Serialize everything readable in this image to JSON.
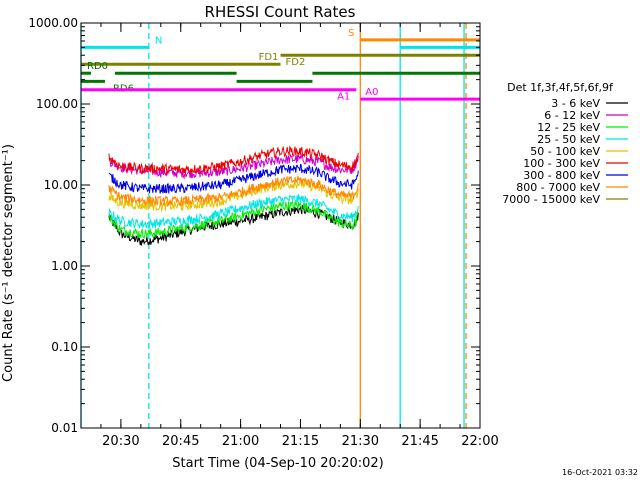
{
  "chart_data": {
    "type": "line",
    "title": "RHESSI Count Rates",
    "xlabel": "Start Time (04-Sep-10 20:20:02)",
    "ylabel": "Count Rate (s⁻¹ detector segment⁻¹)",
    "yscale": "log",
    "ylim": [
      0.01,
      1000
    ],
    "xlim_minutes": [
      0,
      100
    ],
    "x_tick_labels": [
      "20:30",
      "20:45",
      "21:00",
      "21:15",
      "21:30",
      "21:45",
      "22:00"
    ],
    "x_tick_minutes": [
      10,
      25,
      40,
      55,
      70,
      85,
      100
    ],
    "y_tick_labels": [
      "0.01",
      "0.10",
      "1.00",
      "10.00",
      "100.00",
      "1000.00"
    ],
    "y_tick_values": [
      0.01,
      0.1,
      1,
      10,
      100,
      1000
    ],
    "legend_title": "Det 1f,3f,4f,5f,6f,9f",
    "legend_position": "right",
    "timestamp": "16-Oct-2021 03:32",
    "x": [
      7,
      10,
      15,
      20,
      25,
      30,
      35,
      40,
      45,
      50,
      55,
      60,
      62,
      65,
      68,
      69,
      69.5
    ],
    "series": [
      {
        "name": "3 - 6 keV",
        "color": "#000000",
        "values": [
          4.0,
          2.5,
          2.0,
          2.2,
          2.6,
          3.0,
          3.3,
          3.6,
          4.0,
          4.6,
          5.0,
          4.4,
          4.0,
          3.5,
          3.2,
          3.5,
          4.5
        ]
      },
      {
        "name": "6 - 12 keV",
        "color": "#cc00cc",
        "values": [
          20.0,
          16.5,
          15.0,
          14.5,
          14.0,
          14.0,
          14.5,
          16.0,
          18.0,
          20.5,
          21.0,
          19.0,
          17.0,
          15.5,
          15.5,
          19.0,
          23.0
        ]
      },
      {
        "name": "12 - 25 keV",
        "color": "#00ee00",
        "values": [
          4.0,
          2.8,
          2.5,
          2.6,
          2.9,
          3.2,
          3.6,
          4.2,
          4.9,
          5.5,
          5.6,
          4.7,
          4.0,
          3.4,
          3.1,
          3.6,
          4.5
        ]
      },
      {
        "name": "25 - 50 keV",
        "color": "#00e5e5",
        "values": [
          4.5,
          3.6,
          3.3,
          3.4,
          3.6,
          3.9,
          4.4,
          5.2,
          6.0,
          6.6,
          6.7,
          5.8,
          5.0,
          4.2,
          4.0,
          4.6,
          5.5
        ]
      },
      {
        "name": "50 - 100 keV",
        "color": "#e6c200",
        "values": [
          7.0,
          6.0,
          5.6,
          5.5,
          5.5,
          5.8,
          6.3,
          7.5,
          9.0,
          10.0,
          10.5,
          9.0,
          7.8,
          6.8,
          6.5,
          7.5,
          9.0
        ]
      },
      {
        "name": "100 - 300 keV",
        "color": "#ee0000",
        "values": [
          22.0,
          17.0,
          16.0,
          16.0,
          15.5,
          16.0,
          17.0,
          19.5,
          23.0,
          26.0,
          26.0,
          23.0,
          20.0,
          17.5,
          17.0,
          20.0,
          25.0
        ]
      },
      {
        "name": "300 - 800 keV",
        "color": "#0000dd",
        "values": [
          13.0,
          10.0,
          9.0,
          9.0,
          9.0,
          9.5,
          10.0,
          11.5,
          13.5,
          15.5,
          16.0,
          14.0,
          12.0,
          10.5,
          10.0,
          12.0,
          15.0
        ]
      },
      {
        "name": "800 - 7000 keV",
        "color": "#ff8800",
        "values": [
          9.0,
          7.0,
          6.5,
          6.3,
          6.3,
          6.6,
          7.0,
          8.2,
          9.8,
          11.0,
          11.5,
          10.0,
          8.6,
          7.5,
          7.2,
          8.5,
          10.5
        ]
      },
      {
        "name": "7000 - 15000 keV",
        "color": "#808000",
        "values": [
          null,
          null,
          null,
          null,
          null,
          null,
          null,
          null,
          null,
          null,
          null,
          null,
          null,
          null,
          null,
          null,
          null
        ]
      }
    ],
    "annotations": [
      {
        "label": "N",
        "color": "#00e5e5",
        "y": 500,
        "x_start": 0,
        "x_end": 17
      },
      {
        "label": "S",
        "color": "#ff8800",
        "y": 620,
        "x_start": 70,
        "x_end": 100
      },
      {
        "label": "",
        "color": "#00e5e5",
        "y": 500,
        "x_start": 80,
        "x_end": 100
      },
      {
        "label": "FD1",
        "color": "#808000",
        "y": 310,
        "x_start": 0,
        "x_end": 50
      },
      {
        "label": "FD2",
        "color": "#808000",
        "y": 400,
        "x_start": 50,
        "x_end": 100
      },
      {
        "label": "RD0",
        "color": "#007700",
        "y": 240,
        "x_start": 0,
        "x_end": 2.5
      },
      {
        "label": "",
        "color": "#007700",
        "y": 240,
        "x_start": 8.5,
        "x_end": 39
      },
      {
        "label": "",
        "color": "#007700",
        "y": 240,
        "x_start": 58,
        "x_end": 100
      },
      {
        "label": "RD6",
        "color": "#007700",
        "y": 190,
        "x_start": 0,
        "x_end": 6
      },
      {
        "label": "",
        "color": "#007700",
        "y": 190,
        "x_start": 39,
        "x_end": 58
      },
      {
        "label": "A1",
        "color": "#ff00ff",
        "y": 150,
        "x_start": 0,
        "x_end": 69
      },
      {
        "label": "A0",
        "color": "#ff00ff",
        "y": 115,
        "x_start": 70,
        "x_end": 100
      }
    ],
    "vertical_lines": [
      {
        "x": 0,
        "color": "#00e5e5",
        "dashed": false
      },
      {
        "x": 17,
        "color": "#00e5e5",
        "dashed": true
      },
      {
        "x": 70,
        "color": "#ff8800",
        "dashed": false
      },
      {
        "x": 80,
        "color": "#00e5e5",
        "dashed": false
      },
      {
        "x": 96,
        "color": "#00e5e5",
        "dashed": false
      },
      {
        "x": 96.5,
        "color": "#ff8800",
        "dashed": true
      }
    ]
  }
}
